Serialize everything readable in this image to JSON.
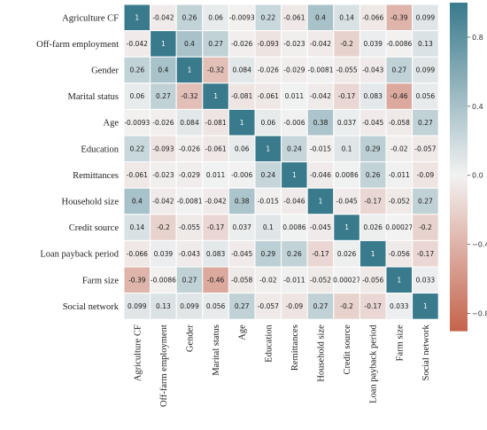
{
  "chart_data": {
    "type": "heatmap",
    "title": "",
    "xlabel": "",
    "ylabel": "",
    "row_labels": [
      "Agriculture CF",
      "Off-farm employment",
      "Gender",
      "Marital status",
      "Age",
      "Education",
      "Remittances",
      "Household  size",
      "Credit source",
      "Loan payback period",
      "Farm size",
      "Social network"
    ],
    "col_labels": [
      "Agriculture CF",
      "Off-farm employment",
      "Gender",
      "Marital status",
      "Age",
      "Education",
      "Remittances",
      "Household  size",
      "Credit source",
      "Loan payback period",
      "Farm size",
      "Social network"
    ],
    "cell_labels": [
      [
        "1",
        "-0.042",
        "0.26",
        "0.06",
        "-0.0093",
        "0.22",
        "-0.061",
        "0.4",
        "0.14",
        "-0.066",
        "-0.39",
        "0.099"
      ],
      [
        "-0.042",
        "1",
        "0.4",
        "0.27",
        "-0.026",
        "-0.093",
        "-0.023",
        "-0.042",
        "-0.2",
        "0.039",
        "-0.0086",
        "0.13"
      ],
      [
        "0.26",
        "0.4",
        "1",
        "-0.32",
        "0.084",
        "-0.026",
        "-0.029",
        "-0.0081",
        "-0.055",
        "-0.043",
        "0.27",
        "0.099"
      ],
      [
        "0.06",
        "0.27",
        "-0.32",
        "1",
        "-0.081",
        "-0.061",
        "0.011",
        "-0.042",
        "-0.17",
        "0.083",
        "-0.46",
        "0.056"
      ],
      [
        "-0.0093",
        "-0.026",
        "0.084",
        "-0.081",
        "1",
        "0.06",
        "-0.006",
        "0.38",
        "0.037",
        "-0.045",
        "-0.058",
        "0.27"
      ],
      [
        "0.22",
        "-0.093",
        "-0.026",
        "-0.061",
        "0.06",
        "1",
        "0.24",
        "-0.015",
        "0.1",
        "0.29",
        "-0.02",
        "-0.057"
      ],
      [
        "-0.061",
        "-0.023",
        "-0.029",
        "0.011",
        "-0.006",
        "0.24",
        "1",
        "-0.046",
        "0.0086",
        "0.26",
        "-0.011",
        "-0.09"
      ],
      [
        "0.4",
        "-0.042",
        "-0.0081",
        "-0.042",
        "0.38",
        "-0.015",
        "-0.046",
        "1",
        "-0.045",
        "-0.17",
        "-0.052",
        "0.27"
      ],
      [
        "0.14",
        "-0.2",
        "-0.055",
        "-0.17",
        "0.037",
        "0.1",
        "0.0086",
        "-0.045",
        "1",
        "0.026",
        "0.00027",
        "-0.2"
      ],
      [
        "-0.066",
        "0.039",
        "-0.043",
        "0.083",
        "-0.045",
        "0.29",
        "0.26",
        "-0.17",
        "0.026",
        "1",
        "-0.056",
        "-0.17"
      ],
      [
        "-0.39",
        "-0.0086",
        "0.27",
        "-0.46",
        "-0.058",
        "-0.02",
        "-0.011",
        "-0.052",
        "0.00027",
        "-0.056",
        "1",
        "0.033"
      ],
      [
        "0.099",
        "0.13",
        "0.099",
        "0.056",
        "0.27",
        "-0.057",
        "-0.09",
        "0.27",
        "-0.2",
        "-0.17",
        "0.033",
        "1"
      ]
    ],
    "colorbar": {
      "ticks": [
        "0.8",
        "0.4",
        "0.0",
        "−0.4",
        "−0.8"
      ],
      "tick_values": [
        0.8,
        0.4,
        0.0,
        -0.4,
        -0.8
      ],
      "range": [
        -0.9,
        1.0
      ],
      "colors": {
        "negative": "#c0543a",
        "neutral": "#f2f2f2",
        "positive": "#397a8c"
      }
    },
    "grid": true,
    "legend": "right"
  }
}
